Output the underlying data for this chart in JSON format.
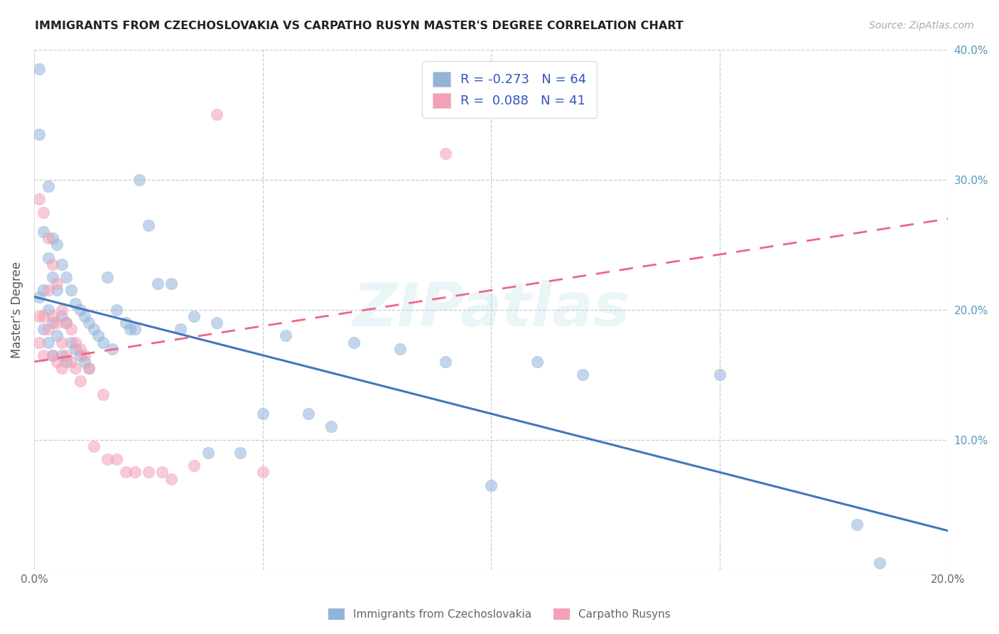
{
  "title": "IMMIGRANTS FROM CZECHOSLOVAKIA VS CARPATHO RUSYN MASTER'S DEGREE CORRELATION CHART",
  "source": "Source: ZipAtlas.com",
  "ylabel": "Master's Degree",
  "xmin": 0.0,
  "xmax": 0.2,
  "ymin": 0.0,
  "ymax": 0.4,
  "blue_R": -0.273,
  "blue_N": 64,
  "pink_R": 0.088,
  "pink_N": 41,
  "blue_color": "#92B4D9",
  "pink_color": "#F4A0B5",
  "blue_line_color": "#4477BB",
  "pink_line_color": "#EE6688",
  "legend_label_blue": "Immigrants from Czechoslovakia",
  "legend_label_pink": "Carpatho Rusyns",
  "blue_trend_y0": 0.21,
  "blue_trend_y1": 0.03,
  "pink_trend_y0": 0.16,
  "pink_trend_y1": 0.27,
  "blue_x": [
    0.001,
    0.001,
    0.001,
    0.002,
    0.002,
    0.002,
    0.003,
    0.003,
    0.003,
    0.003,
    0.004,
    0.004,
    0.004,
    0.004,
    0.005,
    0.005,
    0.005,
    0.006,
    0.006,
    0.006,
    0.007,
    0.007,
    0.007,
    0.008,
    0.008,
    0.009,
    0.009,
    0.01,
    0.01,
    0.011,
    0.011,
    0.012,
    0.012,
    0.013,
    0.014,
    0.015,
    0.016,
    0.017,
    0.018,
    0.02,
    0.021,
    0.022,
    0.023,
    0.025,
    0.027,
    0.03,
    0.032,
    0.035,
    0.038,
    0.04,
    0.045,
    0.05,
    0.055,
    0.06,
    0.065,
    0.07,
    0.08,
    0.09,
    0.1,
    0.11,
    0.12,
    0.15,
    0.18,
    0.185
  ],
  "blue_y": [
    0.385,
    0.335,
    0.21,
    0.26,
    0.215,
    0.185,
    0.295,
    0.24,
    0.2,
    0.175,
    0.255,
    0.225,
    0.19,
    0.165,
    0.25,
    0.215,
    0.18,
    0.235,
    0.195,
    0.165,
    0.225,
    0.19,
    0.16,
    0.215,
    0.175,
    0.205,
    0.17,
    0.2,
    0.165,
    0.195,
    0.16,
    0.19,
    0.155,
    0.185,
    0.18,
    0.175,
    0.225,
    0.17,
    0.2,
    0.19,
    0.185,
    0.185,
    0.3,
    0.265,
    0.22,
    0.22,
    0.185,
    0.195,
    0.09,
    0.19,
    0.09,
    0.12,
    0.18,
    0.12,
    0.11,
    0.175,
    0.17,
    0.16,
    0.065,
    0.16,
    0.15,
    0.15,
    0.035,
    0.005
  ],
  "pink_x": [
    0.001,
    0.001,
    0.001,
    0.002,
    0.002,
    0.002,
    0.003,
    0.003,
    0.003,
    0.004,
    0.004,
    0.004,
    0.005,
    0.005,
    0.005,
    0.006,
    0.006,
    0.006,
    0.007,
    0.007,
    0.008,
    0.008,
    0.009,
    0.009,
    0.01,
    0.01,
    0.011,
    0.012,
    0.013,
    0.015,
    0.016,
    0.018,
    0.02,
    0.022,
    0.025,
    0.028,
    0.03,
    0.035,
    0.04,
    0.05,
    0.09
  ],
  "pink_y": [
    0.285,
    0.195,
    0.175,
    0.275,
    0.195,
    0.165,
    0.255,
    0.215,
    0.185,
    0.235,
    0.195,
    0.165,
    0.22,
    0.19,
    0.16,
    0.2,
    0.175,
    0.155,
    0.19,
    0.165,
    0.185,
    0.16,
    0.175,
    0.155,
    0.17,
    0.145,
    0.165,
    0.155,
    0.095,
    0.135,
    0.085,
    0.085,
    0.075,
    0.075,
    0.075,
    0.075,
    0.07,
    0.08,
    0.35,
    0.075,
    0.32
  ]
}
